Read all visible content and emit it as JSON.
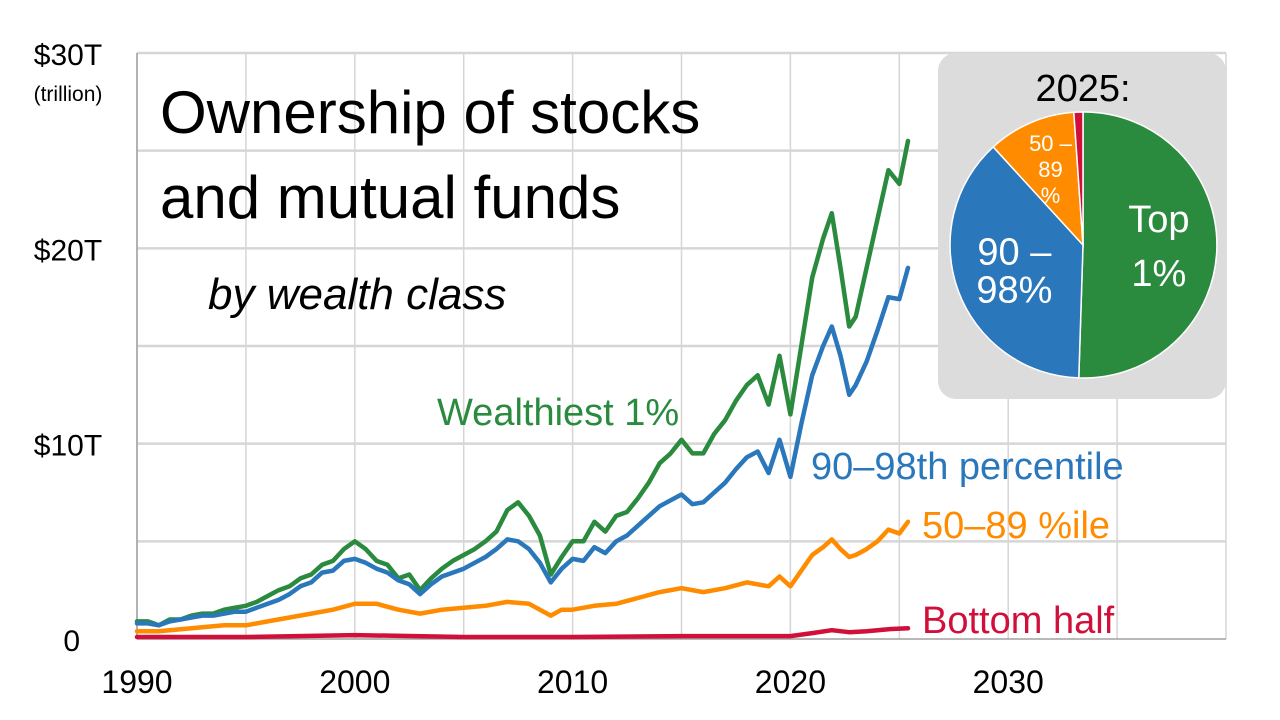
{
  "chart_data": [
    {
      "type": "line",
      "title": "Ownership of stocks and mutual funds",
      "title_lines": [
        "Ownership of stocks",
        "and mutual funds"
      ],
      "subtitle": "by wealth class",
      "xlabel": "",
      "ylabel": "",
      "y_unit_note": "(trillion)",
      "xlim": [
        1990,
        2040
      ],
      "ylim": [
        0,
        30
      ],
      "x_ticks": [
        1990,
        2000,
        2010,
        2020,
        2030
      ],
      "x_tick_labels": [
        "1990",
        "2000",
        "2010",
        "2020",
        "2030"
      ],
      "y_ticks": [
        0,
        10,
        20,
        30
      ],
      "y_tick_labels": [
        "0",
        "$10T",
        "$20T",
        "$30T"
      ],
      "grid": true,
      "series": [
        {
          "name": "Wealthiest 1%",
          "color": "#2a8a3e",
          "points": [
            [
              1990,
              0.9
            ],
            [
              1990.5,
              0.9
            ],
            [
              1991,
              0.7
            ],
            [
              1991.5,
              1.0
            ],
            [
              1992,
              1.0
            ],
            [
              1992.5,
              1.2
            ],
            [
              1993,
              1.3
            ],
            [
              1993.5,
              1.3
            ],
            [
              1994,
              1.5
            ],
            [
              1994.5,
              1.6
            ],
            [
              1995,
              1.7
            ],
            [
              1995.5,
              1.9
            ],
            [
              1996,
              2.2
            ],
            [
              1996.5,
              2.5
            ],
            [
              1997,
              2.7
            ],
            [
              1997.5,
              3.1
            ],
            [
              1998,
              3.3
            ],
            [
              1998.5,
              3.8
            ],
            [
              1999,
              4.0
            ],
            [
              1999.5,
              4.6
            ],
            [
              2000,
              5.0
            ],
            [
              2000.5,
              4.6
            ],
            [
              2001,
              4.0
            ],
            [
              2001.5,
              3.8
            ],
            [
              2002,
              3.1
            ],
            [
              2002.5,
              3.3
            ],
            [
              2003,
              2.5
            ],
            [
              2003.5,
              3.1
            ],
            [
              2004,
              3.6
            ],
            [
              2004.5,
              4.0
            ],
            [
              2005,
              4.3
            ],
            [
              2005.5,
              4.6
            ],
            [
              2006,
              5.0
            ],
            [
              2006.5,
              5.5
            ],
            [
              2007,
              6.6
            ],
            [
              2007.5,
              7.0
            ],
            [
              2008,
              6.3
            ],
            [
              2008.5,
              5.3
            ],
            [
              2009,
              3.3
            ],
            [
              2009.5,
              4.2
            ],
            [
              2010,
              5.0
            ],
            [
              2010.5,
              5.0
            ],
            [
              2011,
              6.0
            ],
            [
              2011.5,
              5.5
            ],
            [
              2012,
              6.3
            ],
            [
              2012.5,
              6.5
            ],
            [
              2013,
              7.2
            ],
            [
              2013.5,
              8.0
            ],
            [
              2014,
              9.0
            ],
            [
              2014.5,
              9.5
            ],
            [
              2015,
              10.2
            ],
            [
              2015.5,
              9.5
            ],
            [
              2016,
              9.5
            ],
            [
              2016.5,
              10.5
            ],
            [
              2017,
              11.2
            ],
            [
              2017.5,
              12.2
            ],
            [
              2018,
              13.0
            ],
            [
              2018.5,
              13.5
            ],
            [
              2019,
              12.0
            ],
            [
              2019.5,
              14.5
            ],
            [
              2020,
              11.5
            ],
            [
              2020.5,
              15.0
            ],
            [
              2021,
              18.5
            ],
            [
              2021.5,
              20.5
            ],
            [
              2021.9,
              21.8
            ],
            [
              2022.3,
              19.0
            ],
            [
              2022.7,
              16.0
            ],
            [
              2023,
              16.5
            ],
            [
              2023.5,
              19.0
            ],
            [
              2024,
              21.5
            ],
            [
              2024.5,
              24.0
            ],
            [
              2025,
              23.3
            ],
            [
              2025.4,
              25.5
            ]
          ]
        },
        {
          "name": "90–98th percentile",
          "color": "#2a77bc",
          "points": [
            [
              1990,
              0.8
            ],
            [
              1990.5,
              0.8
            ],
            [
              1991,
              0.7
            ],
            [
              1991.5,
              0.9
            ],
            [
              1992,
              1.0
            ],
            [
              1992.5,
              1.1
            ],
            [
              1993,
              1.2
            ],
            [
              1993.5,
              1.2
            ],
            [
              1994,
              1.3
            ],
            [
              1994.5,
              1.4
            ],
            [
              1995,
              1.4
            ],
            [
              1995.5,
              1.6
            ],
            [
              1996,
              1.8
            ],
            [
              1996.5,
              2.0
            ],
            [
              1997,
              2.3
            ],
            [
              1997.5,
              2.7
            ],
            [
              1998,
              2.9
            ],
            [
              1998.5,
              3.4
            ],
            [
              1999,
              3.5
            ],
            [
              1999.5,
              4.0
            ],
            [
              2000,
              4.1
            ],
            [
              2000.5,
              3.9
            ],
            [
              2001,
              3.6
            ],
            [
              2001.5,
              3.4
            ],
            [
              2002,
              3.0
            ],
            [
              2002.5,
              2.8
            ],
            [
              2003,
              2.3
            ],
            [
              2003.5,
              2.8
            ],
            [
              2004,
              3.2
            ],
            [
              2004.5,
              3.4
            ],
            [
              2005,
              3.6
            ],
            [
              2005.5,
              3.9
            ],
            [
              2006,
              4.2
            ],
            [
              2006.5,
              4.6
            ],
            [
              2007,
              5.1
            ],
            [
              2007.5,
              5.0
            ],
            [
              2008,
              4.6
            ],
            [
              2008.5,
              3.9
            ],
            [
              2009,
              2.9
            ],
            [
              2009.5,
              3.6
            ],
            [
              2010,
              4.1
            ],
            [
              2010.5,
              4.0
            ],
            [
              2011,
              4.7
            ],
            [
              2011.5,
              4.4
            ],
            [
              2012,
              5.0
            ],
            [
              2012.5,
              5.3
            ],
            [
              2013,
              5.8
            ],
            [
              2013.5,
              6.3
            ],
            [
              2014,
              6.8
            ],
            [
              2014.5,
              7.1
            ],
            [
              2015,
              7.4
            ],
            [
              2015.5,
              6.9
            ],
            [
              2016,
              7.0
            ],
            [
              2016.5,
              7.5
            ],
            [
              2017,
              8.0
            ],
            [
              2017.5,
              8.7
            ],
            [
              2018,
              9.3
            ],
            [
              2018.5,
              9.6
            ],
            [
              2019,
              8.5
            ],
            [
              2019.5,
              10.2
            ],
            [
              2020,
              8.3
            ],
            [
              2020.5,
              11.0
            ],
            [
              2021,
              13.5
            ],
            [
              2021.5,
              15.0
            ],
            [
              2021.9,
              16.0
            ],
            [
              2022.3,
              14.5
            ],
            [
              2022.7,
              12.5
            ],
            [
              2023,
              13.0
            ],
            [
              2023.5,
              14.2
            ],
            [
              2024,
              15.8
            ],
            [
              2024.5,
              17.5
            ],
            [
              2025,
              17.4
            ],
            [
              2025.4,
              19.0
            ]
          ]
        },
        {
          "name": "50–89 %ile",
          "color": "#ff8c00",
          "points": [
            [
              1990,
              0.4
            ],
            [
              1991,
              0.4
            ],
            [
              1992,
              0.5
            ],
            [
              1993,
              0.6
            ],
            [
              1994,
              0.7
            ],
            [
              1995,
              0.7
            ],
            [
              1996,
              0.9
            ],
            [
              1997,
              1.1
            ],
            [
              1998,
              1.3
            ],
            [
              1999,
              1.5
            ],
            [
              2000,
              1.8
            ],
            [
              2001,
              1.8
            ],
            [
              2002,
              1.5
            ],
            [
              2003,
              1.3
            ],
            [
              2004,
              1.5
            ],
            [
              2005,
              1.6
            ],
            [
              2006,
              1.7
            ],
            [
              2007,
              1.9
            ],
            [
              2008,
              1.8
            ],
            [
              2009,
              1.2
            ],
            [
              2009.5,
              1.5
            ],
            [
              2010,
              1.5
            ],
            [
              2011,
              1.7
            ],
            [
              2012,
              1.8
            ],
            [
              2013,
              2.1
            ],
            [
              2014,
              2.4
            ],
            [
              2015,
              2.6
            ],
            [
              2016,
              2.4
            ],
            [
              2017,
              2.6
            ],
            [
              2018,
              2.9
            ],
            [
              2019,
              2.7
            ],
            [
              2019.5,
              3.2
            ],
            [
              2020,
              2.7
            ],
            [
              2020.5,
              3.5
            ],
            [
              2021,
              4.3
            ],
            [
              2021.5,
              4.7
            ],
            [
              2021.9,
              5.1
            ],
            [
              2022.3,
              4.6
            ],
            [
              2022.7,
              4.2
            ],
            [
              2023,
              4.3
            ],
            [
              2023.5,
              4.6
            ],
            [
              2024,
              5.0
            ],
            [
              2024.5,
              5.6
            ],
            [
              2025,
              5.4
            ],
            [
              2025.4,
              6.0
            ]
          ]
        },
        {
          "name": "Bottom half",
          "color": "#d0103a",
          "points": [
            [
              1990,
              0.1
            ],
            [
              1995,
              0.1
            ],
            [
              2000,
              0.2
            ],
            [
              2005,
              0.1
            ],
            [
              2010,
              0.1
            ],
            [
              2015,
              0.15
            ],
            [
              2019,
              0.15
            ],
            [
              2020,
              0.15
            ],
            [
              2021,
              0.3
            ],
            [
              2021.9,
              0.45
            ],
            [
              2022.7,
              0.35
            ],
            [
              2023.5,
              0.4
            ],
            [
              2024.5,
              0.5
            ],
            [
              2025.4,
              0.55
            ]
          ]
        }
      ],
      "inset_pie": {
        "type": "pie",
        "title": "2025:",
        "slices": [
          {
            "label": "Top 1%",
            "label_lines": [
              "Top",
              "1%"
            ],
            "value": 50.5,
            "color": "#2a8a3e"
          },
          {
            "label": "90 – 98%",
            "label_lines": [
              "90 –",
              "98%"
            ],
            "value": 37.7,
            "color": "#2a77bc"
          },
          {
            "label": "50 – 89 %",
            "label_lines": [
              "50 –",
              "89",
              "%"
            ],
            "value": 10.7,
            "color": "#ff8c00"
          },
          {
            "label": "",
            "label_lines": [],
            "value": 1.1,
            "color": "#d0103a"
          }
        ]
      }
    }
  ]
}
